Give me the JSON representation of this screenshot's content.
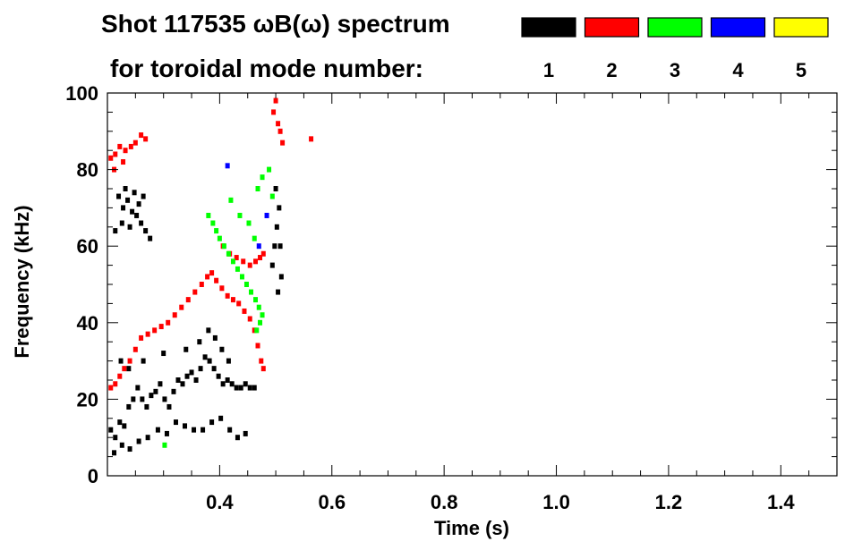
{
  "chart_data": {
    "type": "scatter",
    "title_line1": "Shot 117535 ωB(ω) spectrum",
    "title_line2": "for toroidal mode number:",
    "xlabel": "Time (s)",
    "ylabel": "Frequency (kHz)",
    "xlim": [
      0.2,
      1.5
    ],
    "ylim": [
      0,
      100
    ],
    "x_ticks": [
      0.4,
      0.6,
      0.8,
      1.0,
      1.2,
      1.4
    ],
    "x_tick_labels": [
      "0.4",
      "0.6",
      "0.8",
      "1.0",
      "1.2",
      "1.4"
    ],
    "y_ticks": [
      0,
      20,
      40,
      60,
      80,
      100
    ],
    "y_tick_labels": [
      "0",
      "20",
      "40",
      "60",
      "80",
      "100"
    ],
    "grid": false,
    "legend_placement": "top-right",
    "legend": [
      {
        "label": "1",
        "color": "#000000"
      },
      {
        "label": "2",
        "color": "#ff0000"
      },
      {
        "label": "3",
        "color": "#00ff00"
      },
      {
        "label": "4",
        "color": "#0000ff"
      },
      {
        "label": "5",
        "color": "#ffff00"
      }
    ],
    "series": [
      {
        "color": "#000000",
        "points": [
          [
            0.206,
            12
          ],
          [
            0.214,
            10
          ],
          [
            0.222,
            14
          ],
          [
            0.23,
            13
          ],
          [
            0.238,
            18
          ],
          [
            0.246,
            20
          ],
          [
            0.254,
            23
          ],
          [
            0.262,
            20
          ],
          [
            0.27,
            18
          ],
          [
            0.278,
            21
          ],
          [
            0.286,
            22
          ],
          [
            0.294,
            24
          ],
          [
            0.302,
            20
          ],
          [
            0.31,
            18
          ],
          [
            0.318,
            22
          ],
          [
            0.326,
            25
          ],
          [
            0.334,
            24
          ],
          [
            0.342,
            26
          ],
          [
            0.35,
            27
          ],
          [
            0.358,
            25
          ],
          [
            0.366,
            28
          ],
          [
            0.374,
            31
          ],
          [
            0.382,
            30
          ],
          [
            0.39,
            28
          ],
          [
            0.398,
            26
          ],
          [
            0.406,
            24
          ],
          [
            0.414,
            25
          ],
          [
            0.422,
            24
          ],
          [
            0.43,
            23
          ],
          [
            0.438,
            23
          ],
          [
            0.446,
            24
          ],
          [
            0.454,
            23
          ],
          [
            0.462,
            23
          ],
          [
            0.212,
            6
          ],
          [
            0.226,
            8
          ],
          [
            0.24,
            7
          ],
          [
            0.256,
            9
          ],
          [
            0.272,
            10
          ],
          [
            0.29,
            12
          ],
          [
            0.306,
            11
          ],
          [
            0.322,
            14
          ],
          [
            0.338,
            13
          ],
          [
            0.354,
            12
          ],
          [
            0.37,
            12
          ],
          [
            0.386,
            14
          ],
          [
            0.402,
            15
          ],
          [
            0.418,
            12
          ],
          [
            0.432,
            10
          ],
          [
            0.446,
            11
          ],
          [
            0.224,
            30
          ],
          [
            0.238,
            28
          ],
          [
            0.264,
            30
          ],
          [
            0.3,
            32
          ],
          [
            0.34,
            33
          ],
          [
            0.364,
            35
          ],
          [
            0.38,
            38
          ],
          [
            0.392,
            36
          ],
          [
            0.404,
            33
          ],
          [
            0.416,
            30
          ],
          [
            0.22,
            73
          ],
          [
            0.228,
            70
          ],
          [
            0.236,
            72
          ],
          [
            0.244,
            69
          ],
          [
            0.252,
            68
          ],
          [
            0.26,
            66
          ],
          [
            0.268,
            64
          ],
          [
            0.276,
            62
          ],
          [
            0.232,
            75
          ],
          [
            0.248,
            74
          ],
          [
            0.256,
            71
          ],
          [
            0.264,
            73
          ],
          [
            0.214,
            64
          ],
          [
            0.226,
            66
          ],
          [
            0.24,
            65
          ],
          [
            0.494,
            55
          ],
          [
            0.498,
            60
          ],
          [
            0.502,
            65
          ],
          [
            0.506,
            70
          ],
          [
            0.508,
            60
          ],
          [
            0.51,
            52
          ],
          [
            0.504,
            48
          ],
          [
            0.5,
            75
          ]
        ]
      },
      {
        "color": "#ff0000",
        "points": [
          [
            0.206,
            23
          ],
          [
            0.214,
            24
          ],
          [
            0.222,
            26
          ],
          [
            0.23,
            28
          ],
          [
            0.24,
            30
          ],
          [
            0.25,
            33
          ],
          [
            0.26,
            36
          ],
          [
            0.272,
            37
          ],
          [
            0.284,
            38
          ],
          [
            0.296,
            39
          ],
          [
            0.308,
            40
          ],
          [
            0.32,
            42
          ],
          [
            0.332,
            44
          ],
          [
            0.344,
            46
          ],
          [
            0.356,
            48
          ],
          [
            0.368,
            50
          ],
          [
            0.378,
            52
          ],
          [
            0.386,
            53
          ],
          [
            0.394,
            51
          ],
          [
            0.404,
            49
          ],
          [
            0.414,
            47
          ],
          [
            0.424,
            46
          ],
          [
            0.434,
            45
          ],
          [
            0.444,
            43
          ],
          [
            0.454,
            41
          ],
          [
            0.462,
            38
          ],
          [
            0.468,
            34
          ],
          [
            0.474,
            30
          ],
          [
            0.478,
            28
          ],
          [
            0.206,
            83
          ],
          [
            0.214,
            84
          ],
          [
            0.222,
            86
          ],
          [
            0.232,
            85
          ],
          [
            0.242,
            86
          ],
          [
            0.25,
            87
          ],
          [
            0.26,
            89
          ],
          [
            0.268,
            88
          ],
          [
            0.212,
            80
          ],
          [
            0.228,
            82
          ],
          [
            0.406,
            60
          ],
          [
            0.418,
            58
          ],
          [
            0.43,
            57
          ],
          [
            0.442,
            56
          ],
          [
            0.454,
            55
          ],
          [
            0.464,
            56
          ],
          [
            0.472,
            57
          ],
          [
            0.478,
            58
          ],
          [
            0.496,
            95
          ],
          [
            0.5,
            98
          ],
          [
            0.504,
            92
          ],
          [
            0.508,
            90
          ],
          [
            0.512,
            87
          ],
          [
            0.563,
            88
          ]
        ]
      },
      {
        "color": "#00ff00",
        "points": [
          [
            0.38,
            68
          ],
          [
            0.388,
            66
          ],
          [
            0.394,
            64
          ],
          [
            0.4,
            62
          ],
          [
            0.408,
            60
          ],
          [
            0.416,
            58
          ],
          [
            0.424,
            56
          ],
          [
            0.432,
            54
          ],
          [
            0.44,
            52
          ],
          [
            0.448,
            50
          ],
          [
            0.456,
            48
          ],
          [
            0.464,
            46
          ],
          [
            0.47,
            44
          ],
          [
            0.476,
            42
          ],
          [
            0.472,
            40
          ],
          [
            0.466,
            38
          ],
          [
            0.42,
            72
          ],
          [
            0.436,
            68
          ],
          [
            0.452,
            66
          ],
          [
            0.462,
            62
          ],
          [
            0.468,
            75
          ],
          [
            0.476,
            78
          ],
          [
            0.494,
            73
          ],
          [
            0.488,
            80
          ],
          [
            0.302,
            8
          ]
        ]
      },
      {
        "color": "#0000ff",
        "points": [
          [
            0.414,
            81
          ],
          [
            0.484,
            68
          ],
          [
            0.47,
            60
          ]
        ]
      }
    ]
  }
}
